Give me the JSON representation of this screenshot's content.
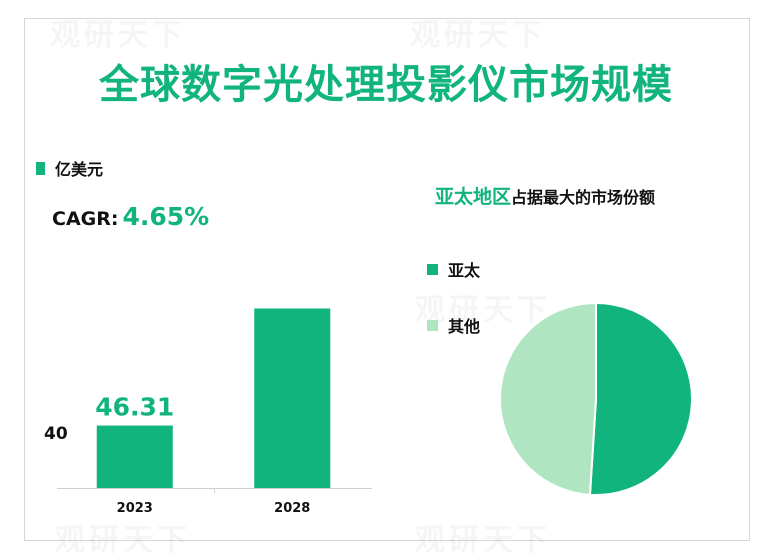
{
  "title": "全球数字光处理投影仪市场规模",
  "watermark": "观研天下",
  "colors": {
    "primary": "#10b47c",
    "secondary": "#b0e5c2",
    "text": "#111111"
  },
  "bar_legend": {
    "label": "亿美元"
  },
  "cagr": {
    "label": "CAGR:",
    "value": "4.65%"
  },
  "pie_title": {
    "highlight": "亚太地区",
    "rest": "占据最大的市场份额"
  },
  "pie_legend": [
    {
      "label": "亚太"
    },
    {
      "label": "其他"
    }
  ],
  "chart_data": [
    {
      "type": "bar",
      "categories": [
        "2023",
        "2028"
      ],
      "values": [
        46.31,
        58.13
      ],
      "data_labels": [
        "46.31",
        ""
      ],
      "y_tick_label": "40",
      "ylim": [
        40,
        60
      ]
    },
    {
      "type": "pie",
      "labels": [
        "亚太",
        "其他"
      ],
      "values": [
        51,
        49
      ]
    }
  ]
}
